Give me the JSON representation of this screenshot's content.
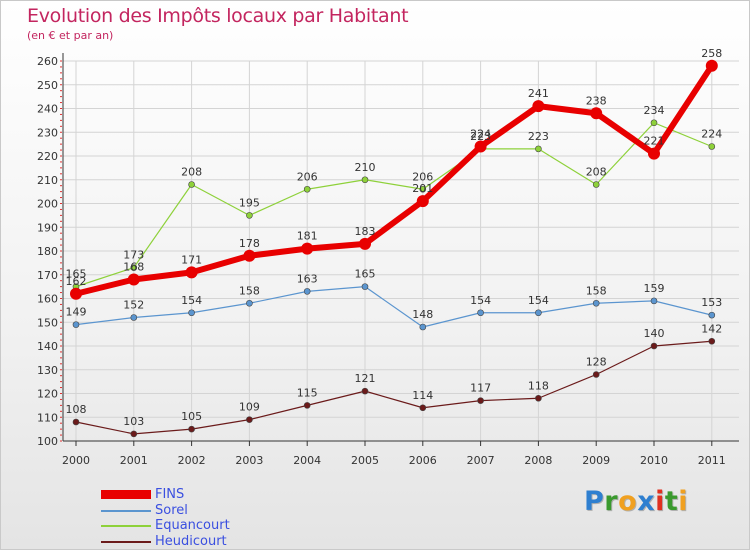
{
  "title": "Evolution des Impôts locaux par Habitant",
  "subtitle": "(en € et par an)",
  "logo": {
    "letters": [
      {
        "ch": "P",
        "color": "#2e7fd0"
      },
      {
        "ch": "r",
        "color": "#3a9a2e"
      },
      {
        "ch": "o",
        "color": "#f0a020"
      },
      {
        "ch": "x",
        "color": "#2e7fd0"
      },
      {
        "ch": "i",
        "color": "#e03020"
      },
      {
        "ch": "t",
        "color": "#3a9a2e"
      },
      {
        "ch": "i",
        "color": "#f0a020"
      }
    ]
  },
  "chart_data": {
    "type": "line",
    "title": "Evolution des Impôts locaux par Habitant",
    "subtitle": "(en € et par an)",
    "xlabel": "",
    "ylabel": "",
    "categories": [
      "2000",
      "2001",
      "2002",
      "2003",
      "2004",
      "2005",
      "2006",
      "2007",
      "2008",
      "2009",
      "2010",
      "2011"
    ],
    "ylim": [
      100,
      260
    ],
    "yticks": [
      100,
      110,
      120,
      130,
      140,
      150,
      160,
      170,
      180,
      190,
      200,
      210,
      220,
      230,
      240,
      250,
      260
    ],
    "grid": true,
    "legend_position": "bottom-left",
    "series": [
      {
        "name": "FINS",
        "color": "#e80000",
        "values": [
          162,
          168,
          171,
          178,
          181,
          183,
          201,
          224,
          241,
          238,
          221,
          258
        ]
      },
      {
        "name": "Sorel",
        "color": "#5b95cf",
        "values": [
          149,
          152,
          154,
          158,
          163,
          165,
          148,
          154,
          154,
          158,
          159,
          153
        ]
      },
      {
        "name": "Equancourt",
        "color": "#8ed13a",
        "values": [
          165,
          173,
          208,
          195,
          206,
          210,
          206,
          223,
          223,
          208,
          234,
          224
        ]
      },
      {
        "name": "Heudicourt",
        "color": "#6b1b1b",
        "values": [
          108,
          103,
          105,
          109,
          115,
          121,
          114,
          117,
          118,
          128,
          140,
          142
        ]
      }
    ]
  }
}
